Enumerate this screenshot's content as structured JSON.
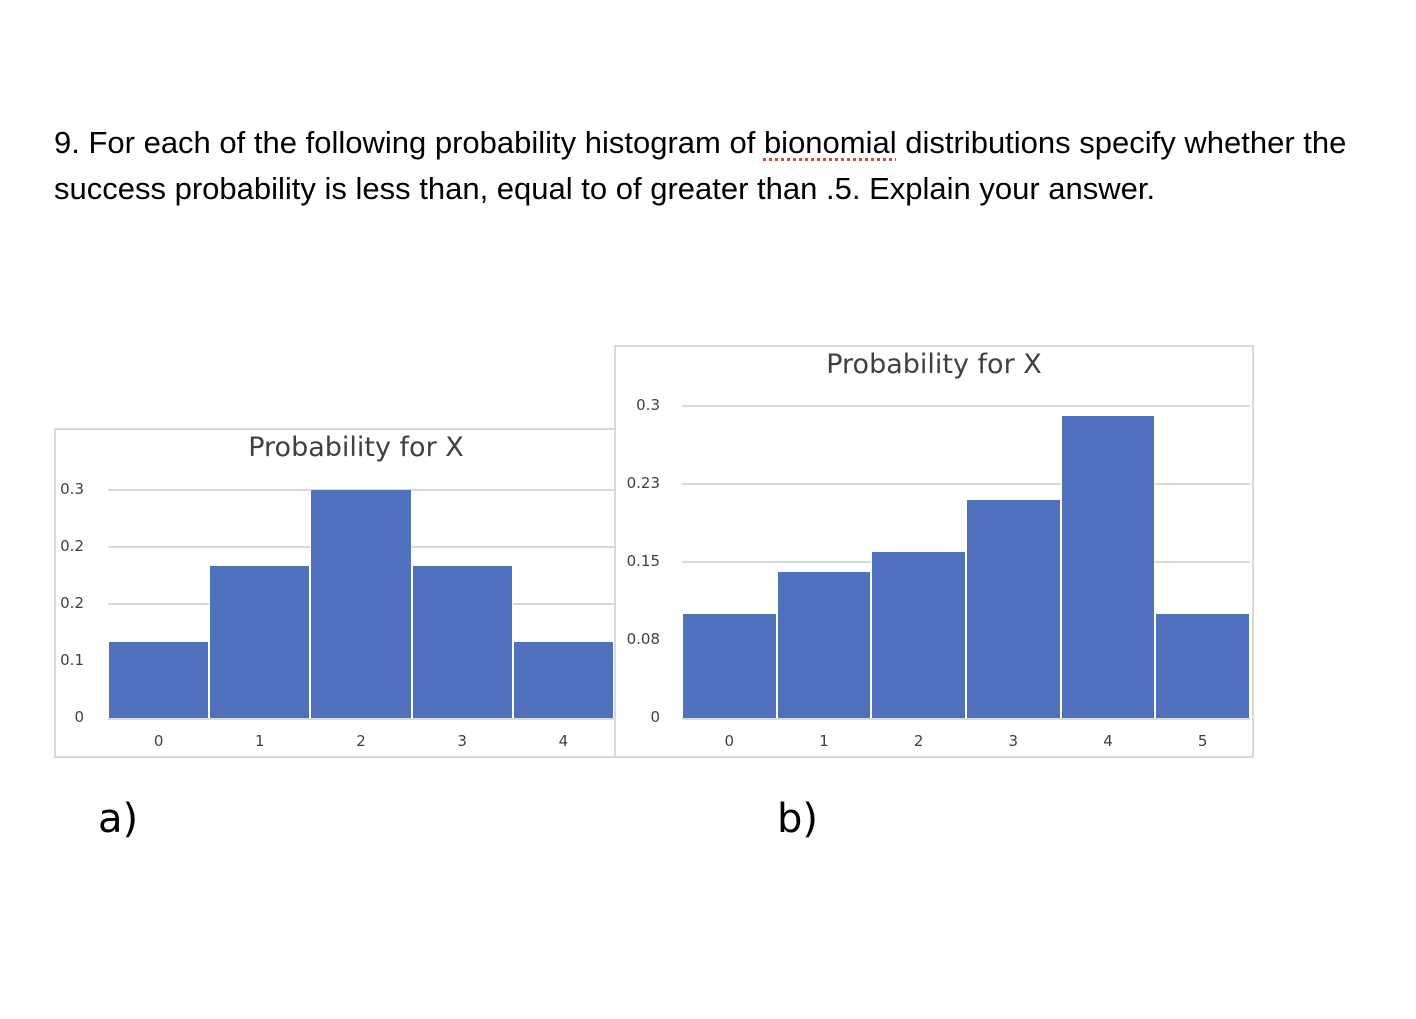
{
  "question": {
    "prefix": "9. For each of the following probability histogram of ",
    "misspelled_word": "bionomial",
    "suffix": " distributions specify whether the success probability is less than, equal to of greater than .5. Explain your answer."
  },
  "labels": {
    "a": "a)",
    "b": "b)"
  },
  "colors": {
    "bar": "#4f71be",
    "grid": "#d9d9d9",
    "text": "#404040",
    "spellcheck": "#e0443e"
  },
  "chart_data": [
    {
      "type": "bar",
      "title": "Probability for X",
      "categories": [
        "0",
        "1",
        "2",
        "3",
        "4"
      ],
      "values": [
        0.1,
        0.2,
        0.3,
        0.2,
        0.1
      ],
      "ytick_labels": [
        "0.3",
        "0.2",
        "0.2",
        "0.1",
        "0"
      ],
      "ylim": [
        0,
        0.3
      ],
      "xlabel": "",
      "ylabel": "",
      "grid": true,
      "legend": "none"
    },
    {
      "type": "bar",
      "title": "Probability for X",
      "categories": [
        "0",
        "1",
        "2",
        "3",
        "4",
        "5"
      ],
      "values": [
        0.1,
        0.14,
        0.16,
        0.21,
        0.29,
        0.1
      ],
      "ytick_labels": [
        "0.3",
        "0.23",
        "0.15",
        "0.08",
        "0"
      ],
      "ylim": [
        0,
        0.3
      ],
      "xlabel": "",
      "ylabel": "",
      "grid": true,
      "legend": "none"
    }
  ]
}
